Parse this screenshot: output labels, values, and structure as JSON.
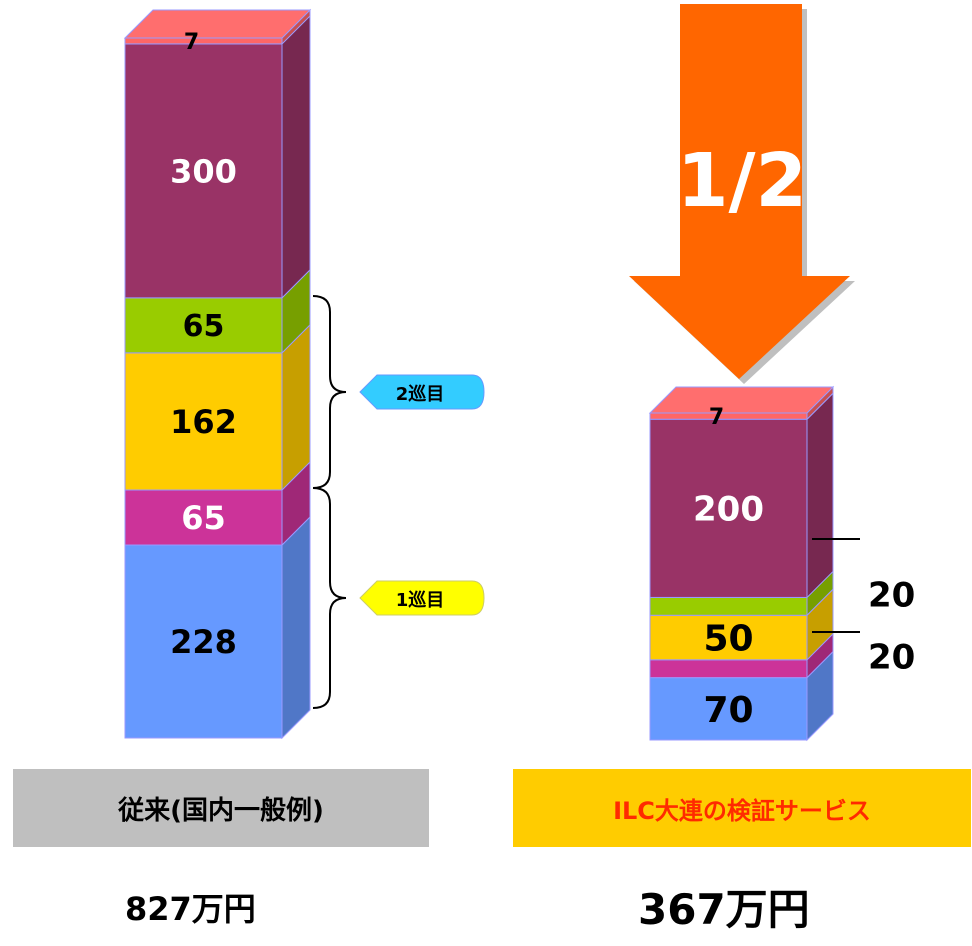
{
  "chart_data": [
    {
      "type": "bar",
      "stacked": true,
      "categories": [
        "従来(国内一般例)"
      ],
      "series": [
        {
          "values": [
            228
          ],
          "color": "#6699ff"
        },
        {
          "values": [
            65
          ],
          "color": "#cc3399"
        },
        {
          "values": [
            162
          ],
          "color": "#ffcc00"
        },
        {
          "values": [
            65
          ],
          "color": "#99cc00"
        },
        {
          "values": [
            300
          ],
          "color": "#993366"
        },
        {
          "values": [
            7
          ],
          "color": "#ff6666"
        }
      ],
      "total": "827万円",
      "annotations": [
        "1巡目",
        "2巡目"
      ]
    },
    {
      "type": "bar",
      "stacked": true,
      "categories": [
        "ILC大連の検証サービス"
      ],
      "series": [
        {
          "values": [
            70
          ],
          "color": "#6699ff"
        },
        {
          "values": [
            20
          ],
          "color": "#cc3399"
        },
        {
          "values": [
            50
          ],
          "color": "#ffcc00"
        },
        {
          "values": [
            20
          ],
          "color": "#99cc00"
        },
        {
          "values": [
            200
          ],
          "color": "#993366"
        },
        {
          "values": [
            7
          ],
          "color": "#ff6666"
        }
      ],
      "total": "367万円",
      "annotations": [
        "1/2"
      ]
    }
  ],
  "labels": {
    "left_caption": "従来(国内一般例)",
    "right_caption": "ILC大連の検証サービス",
    "left_total": "827万円",
    "right_total": "367万円",
    "arrow_text": "1/2",
    "round1": "1巡目",
    "round2": "2巡目"
  },
  "colors": {
    "arrow": "#ff6600",
    "round1_badge": "#ffff00",
    "round2_badge": "#33ccff"
  }
}
